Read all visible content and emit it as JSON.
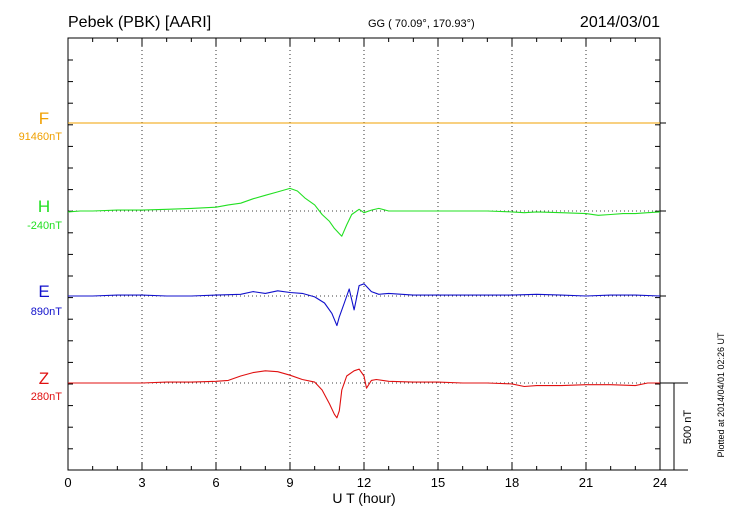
{
  "header": {
    "station": "Pebek (PBK)  [AARI]",
    "coords": "GG ( 70.09°, 170.93°)",
    "date": "2014/03/01"
  },
  "footer_note": "Plotted at 2014/04/01 02:26 UT",
  "scale_bar": {
    "label": "500 nT",
    "value_nT": 500
  },
  "colors": {
    "F": "#f0a000",
    "H": "#22e022",
    "E": "#1010cc",
    "Z": "#e01010"
  },
  "chart_data": {
    "type": "line",
    "xlabel": "U T (hour)",
    "ylabel": "",
    "xlim": [
      0,
      24
    ],
    "xticks": [
      0,
      3,
      6,
      9,
      12,
      15,
      18,
      21,
      24
    ],
    "grid": true,
    "series": [
      {
        "name": "F",
        "baseline_label": "91460nT",
        "x": [
          0,
          3,
          6,
          9,
          12,
          15,
          18,
          21,
          24
        ],
        "y": [
          0,
          0,
          0,
          0,
          0,
          0,
          0,
          0,
          0
        ]
      },
      {
        "name": "H",
        "baseline_label": "-240nT",
        "x": [
          0,
          0.5,
          1,
          2,
          3,
          4,
          5,
          6,
          6.5,
          7,
          7.5,
          8,
          8.5,
          9,
          9.3,
          9.6,
          10,
          10.3,
          10.6,
          10.8,
          11,
          11.1,
          11.3,
          11.5,
          11.8,
          12,
          12.3,
          12.6,
          13,
          14,
          15,
          16,
          17,
          18,
          18.5,
          19,
          20,
          21,
          21.5,
          22,
          22.5,
          23,
          23.5,
          24
        ],
        "y": [
          -5,
          0,
          0,
          5,
          5,
          10,
          15,
          22,
          35,
          45,
          70,
          90,
          110,
          130,
          115,
          75,
          35,
          -20,
          -60,
          -100,
          -130,
          -145,
          -80,
          -20,
          10,
          -10,
          5,
          15,
          0,
          0,
          0,
          0,
          0,
          -5,
          -10,
          -5,
          -10,
          -15,
          -25,
          -20,
          -15,
          -15,
          -10,
          -5
        ]
      },
      {
        "name": "E",
        "baseline_label": "890nT",
        "x": [
          0,
          1,
          2,
          3,
          4,
          5,
          6,
          7,
          7.5,
          8,
          8.5,
          9,
          9.5,
          10,
          10.4,
          10.7,
          10.9,
          11,
          11.2,
          11.4,
          11.6,
          11.8,
          12,
          12.3,
          12.6,
          13,
          14,
          15,
          16,
          17,
          18,
          19,
          20,
          21,
          22,
          23,
          24
        ],
        "y": [
          0,
          0,
          5,
          5,
          0,
          0,
          5,
          10,
          25,
          15,
          30,
          20,
          15,
          -5,
          -40,
          -100,
          -170,
          -120,
          -40,
          40,
          -80,
          60,
          70,
          25,
          10,
          15,
          5,
          5,
          5,
          5,
          5,
          10,
          5,
          0,
          5,
          5,
          0
        ]
      },
      {
        "name": "Z",
        "baseline_label": "280nT",
        "x": [
          0,
          1,
          2,
          3,
          4,
          5,
          6,
          6.5,
          7,
          7.5,
          8,
          8.5,
          9,
          9.5,
          10,
          10.3,
          10.6,
          10.8,
          10.9,
          11,
          11.1,
          11.3,
          11.6,
          11.8,
          12,
          12.1,
          12.3,
          12.5,
          13,
          14,
          15,
          16,
          17,
          18,
          18.5,
          19,
          20,
          21,
          22,
          23,
          23.5,
          24
        ],
        "y": [
          0,
          0,
          0,
          0,
          5,
          5,
          10,
          15,
          40,
          60,
          70,
          65,
          45,
          20,
          5,
          -40,
          -120,
          -180,
          -200,
          -160,
          -40,
          40,
          70,
          80,
          40,
          -30,
          15,
          20,
          10,
          5,
          5,
          0,
          0,
          -5,
          -20,
          -15,
          -15,
          -10,
          -10,
          -15,
          0,
          0
        ]
      }
    ]
  }
}
